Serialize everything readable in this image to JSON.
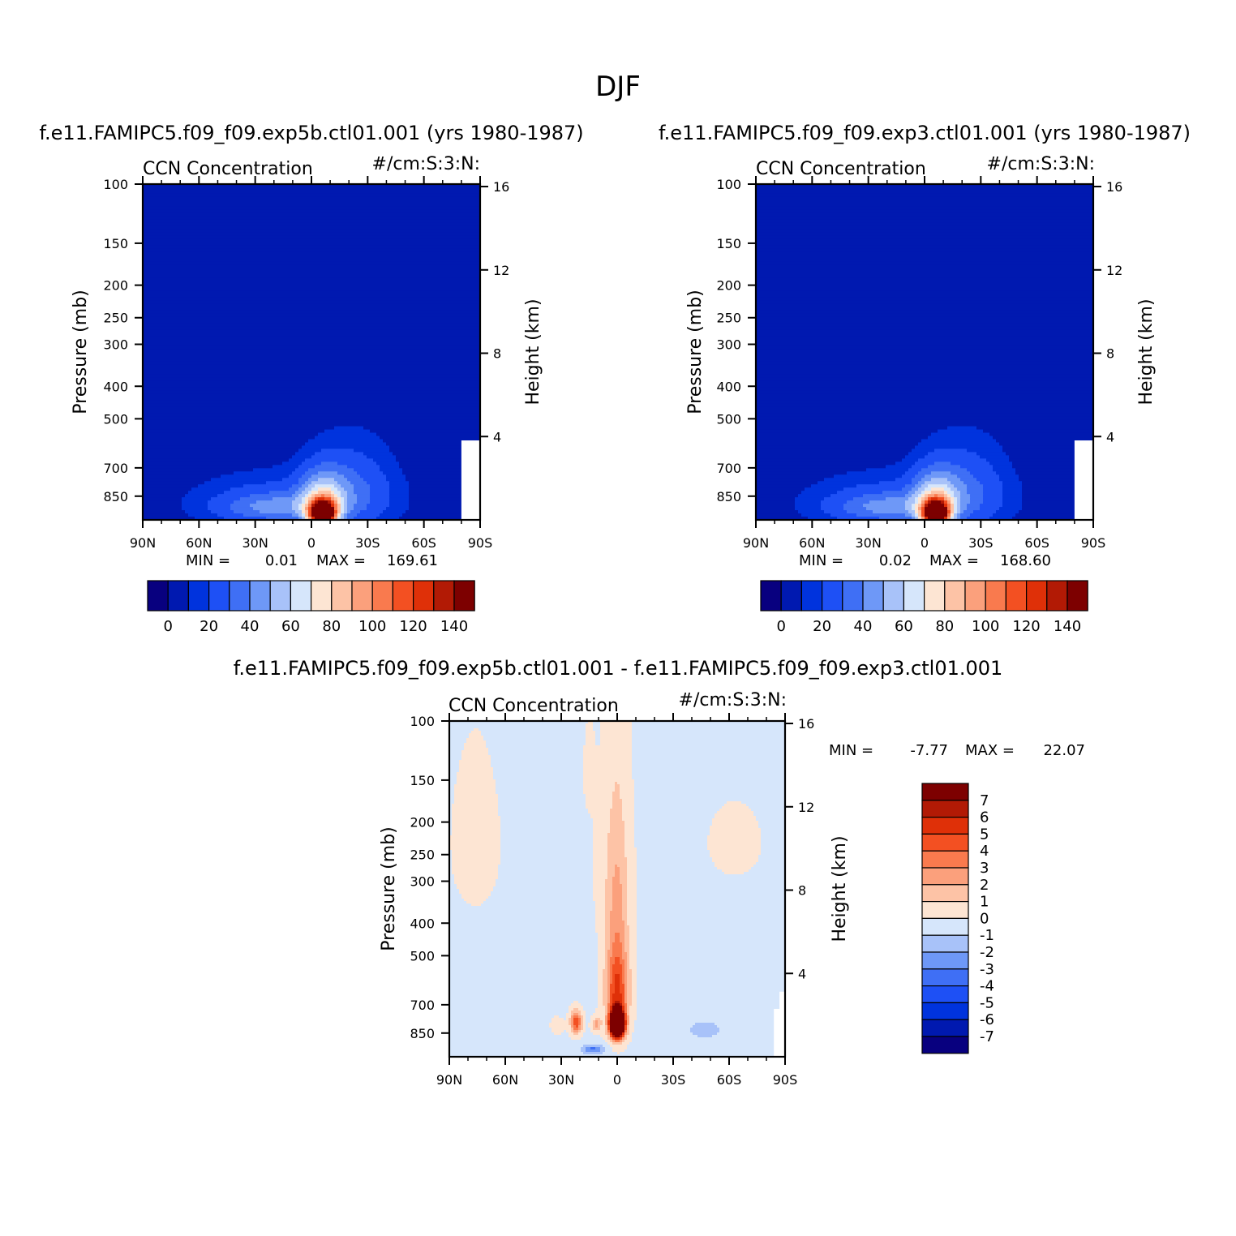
{
  "figure": {
    "title": "DJF"
  },
  "palettes": {
    "abs": [
      "#08007f",
      "#0019b0",
      "#0033dd",
      "#1e50f5",
      "#3f6ff5",
      "#6e98f7",
      "#a8c2f9",
      "#d6e6fb",
      "#fde5d3",
      "#fdc3a6",
      "#fba07c",
      "#f97a4e",
      "#f35022",
      "#df3008",
      "#b21a05",
      "#7d0000"
    ],
    "diff": [
      "#08007f",
      "#0019b0",
      "#0033dd",
      "#1e50f5",
      "#3f6ff5",
      "#6e98f7",
      "#a8c2f9",
      "#d6e6fb",
      "#fde5d3",
      "#fdc3a6",
      "#fba07c",
      "#f97a4e",
      "#f35022",
      "#df3008",
      "#b21a05",
      "#7d0000"
    ]
  },
  "chart_data": [
    {
      "type": "heatmap",
      "case_title": "f.e11.FAMIPC5.f09_f09.exp5b.ctl01.001 (yrs 1980-1987)",
      "left_label": "CCN Concentration",
      "right_label": "#/cm:S:3:N:",
      "ylabel": "Pressure (mb)",
      "y2label": "Height (km)",
      "x_ticks": [
        "90N",
        "60N",
        "30N",
        "0",
        "30S",
        "60S",
        "90S"
      ],
      "y_ticks": [
        "100",
        "150",
        "200",
        "250",
        "300",
        "400",
        "500",
        "700",
        "850"
      ],
      "y2_ticks": [
        "16",
        "12",
        "8",
        "4"
      ],
      "stats": {
        "min_label": "MIN =",
        "min": "0.01",
        "max_label": "MAX =",
        "max": "169.61"
      },
      "colorbar_labels": [
        "0",
        "20",
        "40",
        "60",
        "80",
        "100",
        "120",
        "140"
      ],
      "peak": 169.61
    },
    {
      "type": "heatmap",
      "case_title": "f.e11.FAMIPC5.f09_f09.exp3.ctl01.001 (yrs 1980-1987)",
      "left_label": "CCN Concentration",
      "right_label": "#/cm:S:3:N:",
      "ylabel": "Pressure (mb)",
      "y2label": "Height (km)",
      "x_ticks": [
        "90N",
        "60N",
        "30N",
        "0",
        "30S",
        "60S",
        "90S"
      ],
      "y_ticks": [
        "100",
        "150",
        "200",
        "250",
        "300",
        "400",
        "500",
        "700",
        "850"
      ],
      "y2_ticks": [
        "16",
        "12",
        "8",
        "4"
      ],
      "stats": {
        "min_label": "MIN =",
        "min": "0.02",
        "max_label": "MAX =",
        "max": "168.60"
      },
      "colorbar_labels": [
        "0",
        "20",
        "40",
        "60",
        "80",
        "100",
        "120",
        "140"
      ],
      "peak": 168.6
    },
    {
      "type": "heatmap",
      "case_title": "f.e11.FAMIPC5.f09_f09.exp5b.ctl01.001 - f.e11.FAMIPC5.f09_f09.exp3.ctl01.001",
      "left_label": "CCN Concentration",
      "right_label": "#/cm:S:3:N:",
      "ylabel": "Pressure (mb)",
      "y2label": "Height (km)",
      "x_ticks": [
        "90N",
        "60N",
        "30N",
        "0",
        "30S",
        "60S",
        "90S"
      ],
      "y_ticks": [
        "100",
        "150",
        "200",
        "250",
        "300",
        "400",
        "500",
        "700",
        "850"
      ],
      "y2_ticks": [
        "16",
        "12",
        "8",
        "4"
      ],
      "stats": {
        "min_label": "MIN =",
        "min": "-7.77",
        "max_label": "MAX =",
        "max": "22.07"
      },
      "colorbar_labels": [
        "7",
        "6",
        "5",
        "4",
        "3",
        "2",
        "1",
        "0",
        "-1",
        "-2",
        "-3",
        "-4",
        "-5",
        "-6",
        "-7"
      ]
    }
  ]
}
